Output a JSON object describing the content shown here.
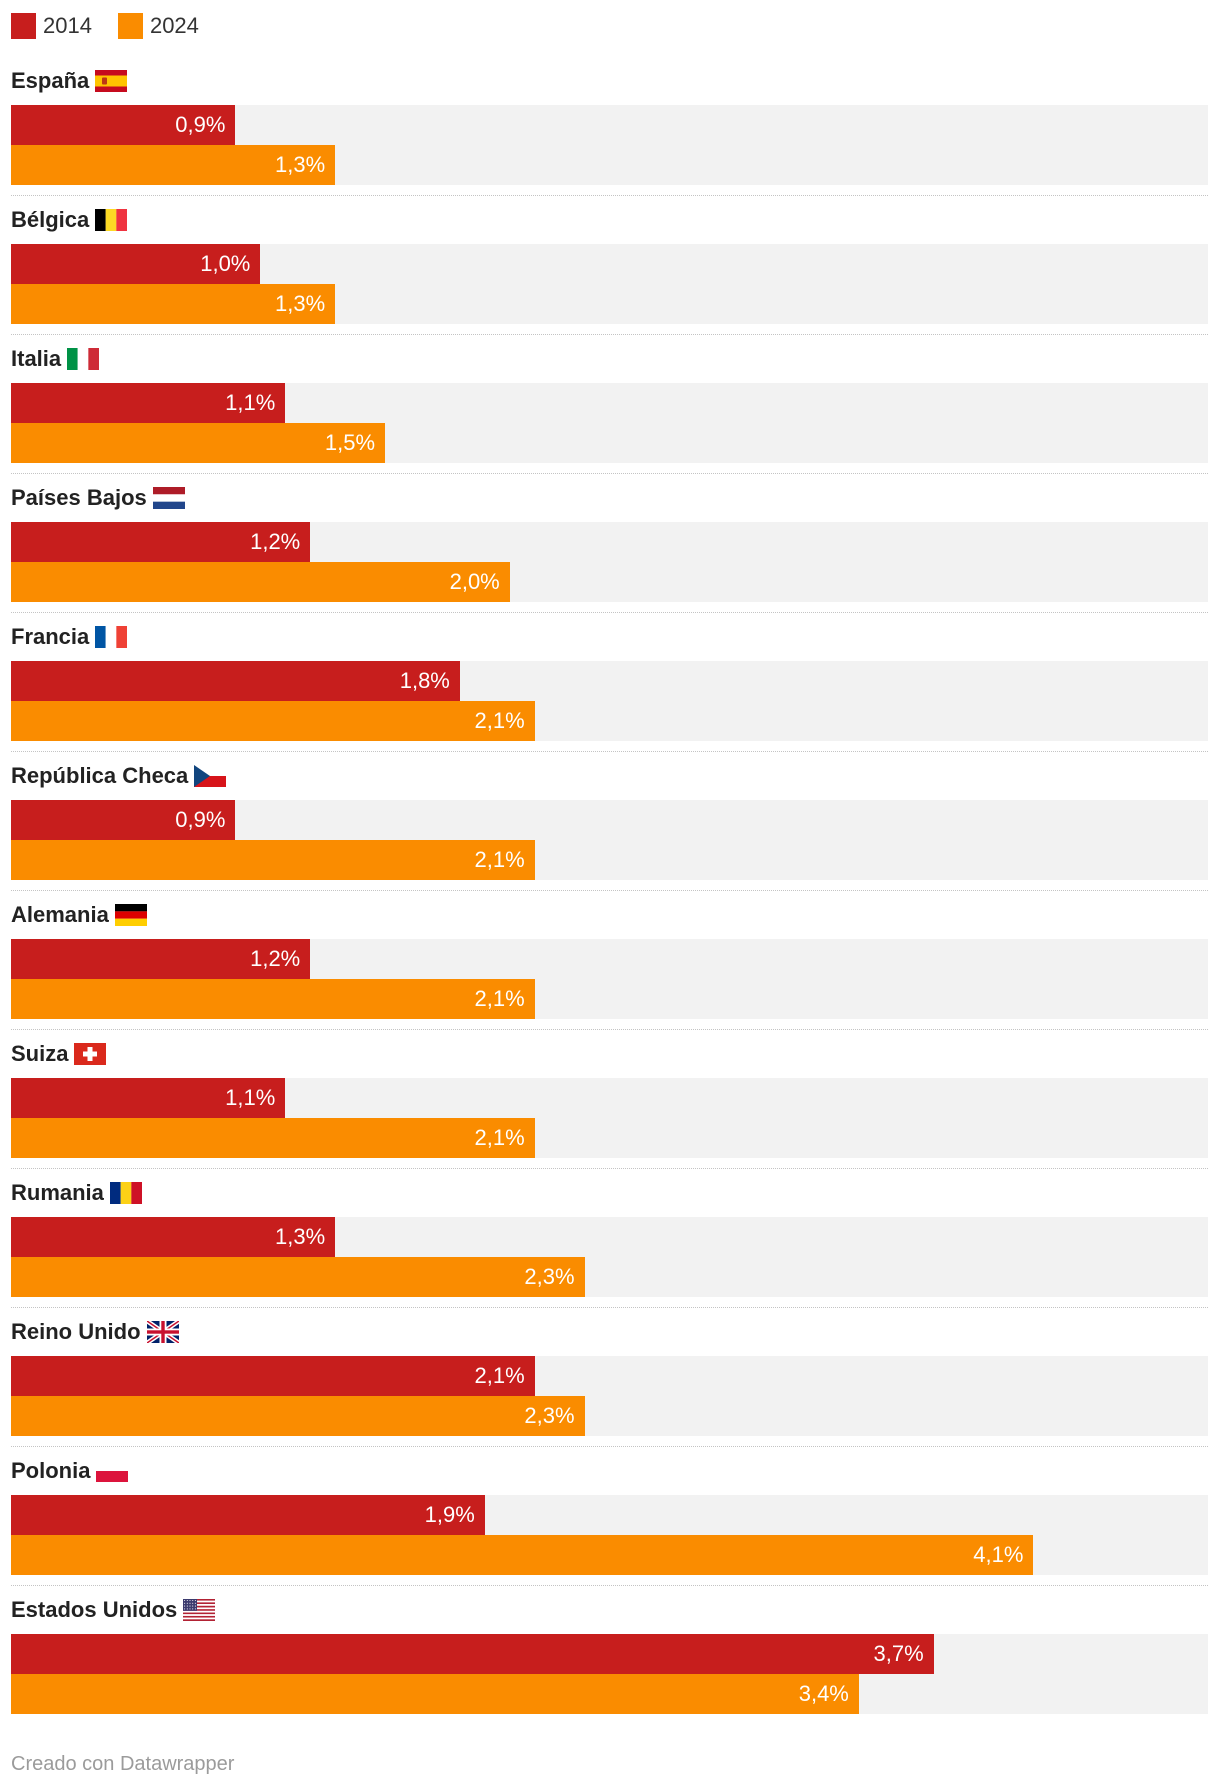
{
  "chart_data": {
    "type": "bar",
    "orientation": "horizontal",
    "grouped": true,
    "categories": [
      "España",
      "Bélgica",
      "Italia",
      "Países Bajos",
      "Francia",
      "República Checa",
      "Alemania",
      "Suiza",
      "Rumania",
      "Reino Unido",
      "Polonia",
      "Estados Unidos"
    ],
    "category_icons": [
      "spain-flag-icon",
      "belgium-flag-icon",
      "italy-flag-icon",
      "netherlands-flag-icon",
      "france-flag-icon",
      "czech-republic-flag-icon",
      "germany-flag-icon",
      "switzerland-flag-icon",
      "romania-flag-icon",
      "united-kingdom-flag-icon",
      "poland-flag-icon",
      "united-states-flag-icon"
    ],
    "series": [
      {
        "name": "2014",
        "color": "#c71e1d",
        "values": [
          0.9,
          1.0,
          1.1,
          1.2,
          1.8,
          0.9,
          1.2,
          1.1,
          1.3,
          2.1,
          1.9,
          3.7
        ],
        "labels": [
          "0,9%",
          "1,0%",
          "1,1%",
          "1,2%",
          "1,8%",
          "0,9%",
          "1,2%",
          "1,1%",
          "1,3%",
          "2,1%",
          "1,9%",
          "3,7%"
        ]
      },
      {
        "name": "2024",
        "color": "#fa8c00",
        "values": [
          1.3,
          1.3,
          1.5,
          2.0,
          2.1,
          2.1,
          2.1,
          2.1,
          2.3,
          2.3,
          4.1,
          3.4
        ],
        "labels": [
          "1,3%",
          "1,3%",
          "1,5%",
          "2,0%",
          "2,1%",
          "2,1%",
          "2,1%",
          "2,1%",
          "2,3%",
          "2,3%",
          "4,1%",
          "3,4%"
        ]
      }
    ],
    "xlim": [
      0,
      4.8
    ],
    "track_color": "#f2f2f2",
    "grid": false,
    "legend": "top-left"
  },
  "footer": {
    "credit": "Creado con Datawrapper"
  }
}
